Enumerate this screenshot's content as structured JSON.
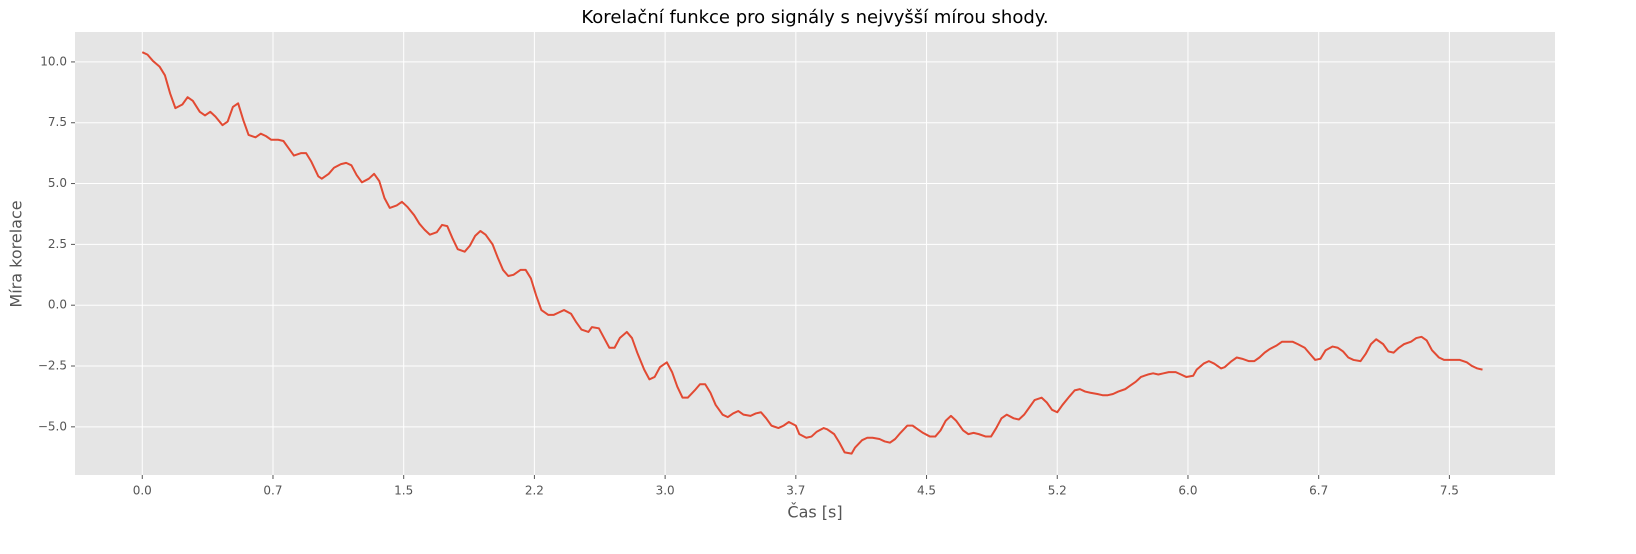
{
  "chart_data": {
    "type": "line",
    "title": "Korelační funkce pro signály s nejvyšší mírou shody.",
    "xlabel": "Čas [s]",
    "ylabel": "Míra korelace",
    "xlim": [
      -0.386,
      8.106
    ],
    "ylim": [
      -6.98,
      11.23
    ],
    "grid": true,
    "xticks": [
      {
        "value": 0,
        "label": "0.0"
      },
      {
        "value": 0.75,
        "label": "0.7"
      },
      {
        "value": 1.5,
        "label": "1.5"
      },
      {
        "value": 2.25,
        "label": "2.2"
      },
      {
        "value": 3,
        "label": "3.0"
      },
      {
        "value": 3.75,
        "label": "3.7"
      },
      {
        "value": 4.5,
        "label": "4.5"
      },
      {
        "value": 5.25,
        "label": "5.2"
      },
      {
        "value": 6,
        "label": "6.0"
      },
      {
        "value": 6.75,
        "label": "6.7"
      },
      {
        "value": 7.5,
        "label": "7.5"
      }
    ],
    "yticks": [
      {
        "value": -5,
        "label": "−5.0"
      },
      {
        "value": -2.5,
        "label": "−2.5"
      },
      {
        "value": 0,
        "label": "0.0"
      },
      {
        "value": 2.5,
        "label": "2.5"
      },
      {
        "value": 5,
        "label": "5.0"
      },
      {
        "value": 7.5,
        "label": "7.5"
      },
      {
        "value": 10,
        "label": "10.0"
      }
    ],
    "x": [
      0,
      0.03,
      0.06,
      0.1,
      0.13,
      0.16,
      0.19,
      0.23,
      0.26,
      0.29,
      0.33,
      0.36,
      0.39,
      0.42,
      0.46,
      0.49,
      0.52,
      0.55,
      0.58,
      0.61,
      0.65,
      0.68,
      0.71,
      0.74,
      0.78,
      0.81,
      0.84,
      0.87,
      0.91,
      0.94,
      0.97,
      1.01,
      1.03,
      1.07,
      1.1,
      1.14,
      1.17,
      1.2,
      1.23,
      1.26,
      1.3,
      1.33,
      1.36,
      1.39,
      1.42,
      1.46,
      1.49,
      1.52,
      1.56,
      1.59,
      1.62,
      1.65,
      1.69,
      1.72,
      1.75,
      1.78,
      1.81,
      1.85,
      1.88,
      1.91,
      1.94,
      1.97,
      2.01,
      2.04,
      2.07,
      2.1,
      2.13,
      2.17,
      2.2,
      2.23,
      2.26,
      2.29,
      2.33,
      2.36,
      2.39,
      2.42,
      2.46,
      2.49,
      2.52,
      2.56,
      2.58,
      2.62,
      2.65,
      2.68,
      2.71,
      2.74,
      2.78,
      2.81,
      2.84,
      2.88,
      2.91,
      2.94,
      2.97,
      3.01,
      3.04,
      3.07,
      3.1,
      3.13,
      3.17,
      3.2,
      3.23,
      3.26,
      3.29,
      3.33,
      3.36,
      3.39,
      3.42,
      3.45,
      3.49,
      3.52,
      3.55,
      3.58,
      3.61,
      3.65,
      3.68,
      3.71,
      3.75,
      3.77,
      3.81,
      3.84,
      3.87,
      3.91,
      3.93,
      3.97,
      4.0,
      4.03,
      4.07,
      4.09,
      4.13,
      4.16,
      4.19,
      4.23,
      4.26,
      4.29,
      4.32,
      4.35,
      4.39,
      4.42,
      4.45,
      4.48,
      4.52,
      4.55,
      4.58,
      4.61,
      4.64,
      4.67,
      4.71,
      4.74,
      4.77,
      4.8,
      4.84,
      4.87,
      4.9,
      4.93,
      4.96,
      5.0,
      5.03,
      5.06,
      5.09,
      5.12,
      5.16,
      5.19,
      5.22,
      5.25,
      5.28,
      5.32,
      5.35,
      5.38,
      5.41,
      5.44,
      5.48,
      5.51,
      5.54,
      5.57,
      5.6,
      5.64,
      5.67,
      5.7,
      5.73,
      5.77,
      5.8,
      5.83,
      5.86,
      5.89,
      5.93,
      5.96,
      5.99,
      6.03,
      6.05,
      6.09,
      6.12,
      6.15,
      6.19,
      6.21,
      6.25,
      6.28,
      6.31,
      6.35,
      6.38,
      6.41,
      6.44,
      6.47,
      6.51,
      6.54,
      6.57,
      6.6,
      6.63,
      6.67,
      6.7,
      6.73,
      6.76,
      6.79,
      6.83,
      6.86,
      6.89,
      6.92,
      6.95,
      6.99,
      7.02,
      7.05,
      7.08,
      7.12,
      7.15,
      7.18,
      7.21,
      7.24,
      7.28,
      7.31,
      7.34,
      7.37,
      7.4,
      7.44,
      7.47,
      7.5,
      7.53,
      7.56,
      7.6,
      7.63,
      7.66,
      7.69
    ],
    "series": [
      {
        "color": "#e24a33",
        "values": [
          10.4,
          10.3,
          10.05,
          9.8,
          9.45,
          8.7,
          8.1,
          8.25,
          8.55,
          8.4,
          7.95,
          7.8,
          7.95,
          7.75,
          7.4,
          7.55,
          8.15,
          8.3,
          7.6,
          7.0,
          6.9,
          7.05,
          6.95,
          6.8,
          6.8,
          6.75,
          6.45,
          6.15,
          6.25,
          6.25,
          5.9,
          5.3,
          5.2,
          5.4,
          5.65,
          5.8,
          5.85,
          5.75,
          5.35,
          5.05,
          5.2,
          5.4,
          5.1,
          4.4,
          4.0,
          4.1,
          4.25,
          4.05,
          3.7,
          3.35,
          3.1,
          2.9,
          3.0,
          3.3,
          3.25,
          2.75,
          2.3,
          2.2,
          2.45,
          2.85,
          3.05,
          2.9,
          2.5,
          1.95,
          1.45,
          1.2,
          1.25,
          1.45,
          1.45,
          1.1,
          0.4,
          -0.2,
          -0.4,
          -0.4,
          -0.3,
          -0.2,
          -0.35,
          -0.7,
          -1.0,
          -1.1,
          -0.9,
          -0.95,
          -1.35,
          -1.75,
          -1.75,
          -1.35,
          -1.1,
          -1.35,
          -1.95,
          -2.65,
          -3.05,
          -2.95,
          -2.55,
          -2.35,
          -2.75,
          -3.35,
          -3.8,
          -3.8,
          -3.5,
          -3.25,
          -3.25,
          -3.6,
          -4.1,
          -4.5,
          -4.6,
          -4.45,
          -4.35,
          -4.5,
          -4.55,
          -4.45,
          -4.4,
          -4.65,
          -4.95,
          -5.05,
          -4.95,
          -4.8,
          -4.95,
          -5.3,
          -5.45,
          -5.4,
          -5.2,
          -5.05,
          -5.1,
          -5.3,
          -5.65,
          -6.05,
          -6.1,
          -5.85,
          -5.55,
          -5.45,
          -5.45,
          -5.5,
          -5.6,
          -5.65,
          -5.5,
          -5.25,
          -4.95,
          -4.95,
          -5.1,
          -5.25,
          -5.4,
          -5.4,
          -5.15,
          -4.75,
          -4.55,
          -4.75,
          -5.15,
          -5.3,
          -5.25,
          -5.3,
          -5.4,
          -5.4,
          -5.05,
          -4.65,
          -4.5,
          -4.65,
          -4.7,
          -4.5,
          -4.2,
          -3.9,
          -3.8,
          -4.0,
          -4.3,
          -4.4,
          -4.1,
          -3.75,
          -3.5,
          -3.45,
          -3.55,
          -3.6,
          -3.65,
          -3.7,
          -3.7,
          -3.65,
          -3.55,
          -3.45,
          -3.3,
          -3.15,
          -2.95,
          -2.85,
          -2.8,
          -2.85,
          -2.8,
          -2.75,
          -2.75,
          -2.85,
          -2.95,
          -2.9,
          -2.65,
          -2.4,
          -2.3,
          -2.4,
          -2.6,
          -2.55,
          -2.3,
          -2.15,
          -2.2,
          -2.3,
          -2.3,
          -2.15,
          -1.95,
          -1.8,
          -1.65,
          -1.5,
          -1.5,
          -1.5,
          -1.6,
          -1.75,
          -2.0,
          -2.25,
          -2.2,
          -1.85,
          -1.7,
          -1.75,
          -1.9,
          -2.15,
          -2.25,
          -2.3,
          -2.0,
          -1.6,
          -1.4,
          -1.6,
          -1.9,
          -1.95,
          -1.75,
          -1.6,
          -1.5,
          -1.35,
          -1.3,
          -1.45,
          -1.85,
          -2.15,
          -2.25,
          -2.25,
          -2.25,
          -2.25,
          -2.35,
          -2.5,
          -2.6,
          -2.65
        ]
      }
    ]
  }
}
